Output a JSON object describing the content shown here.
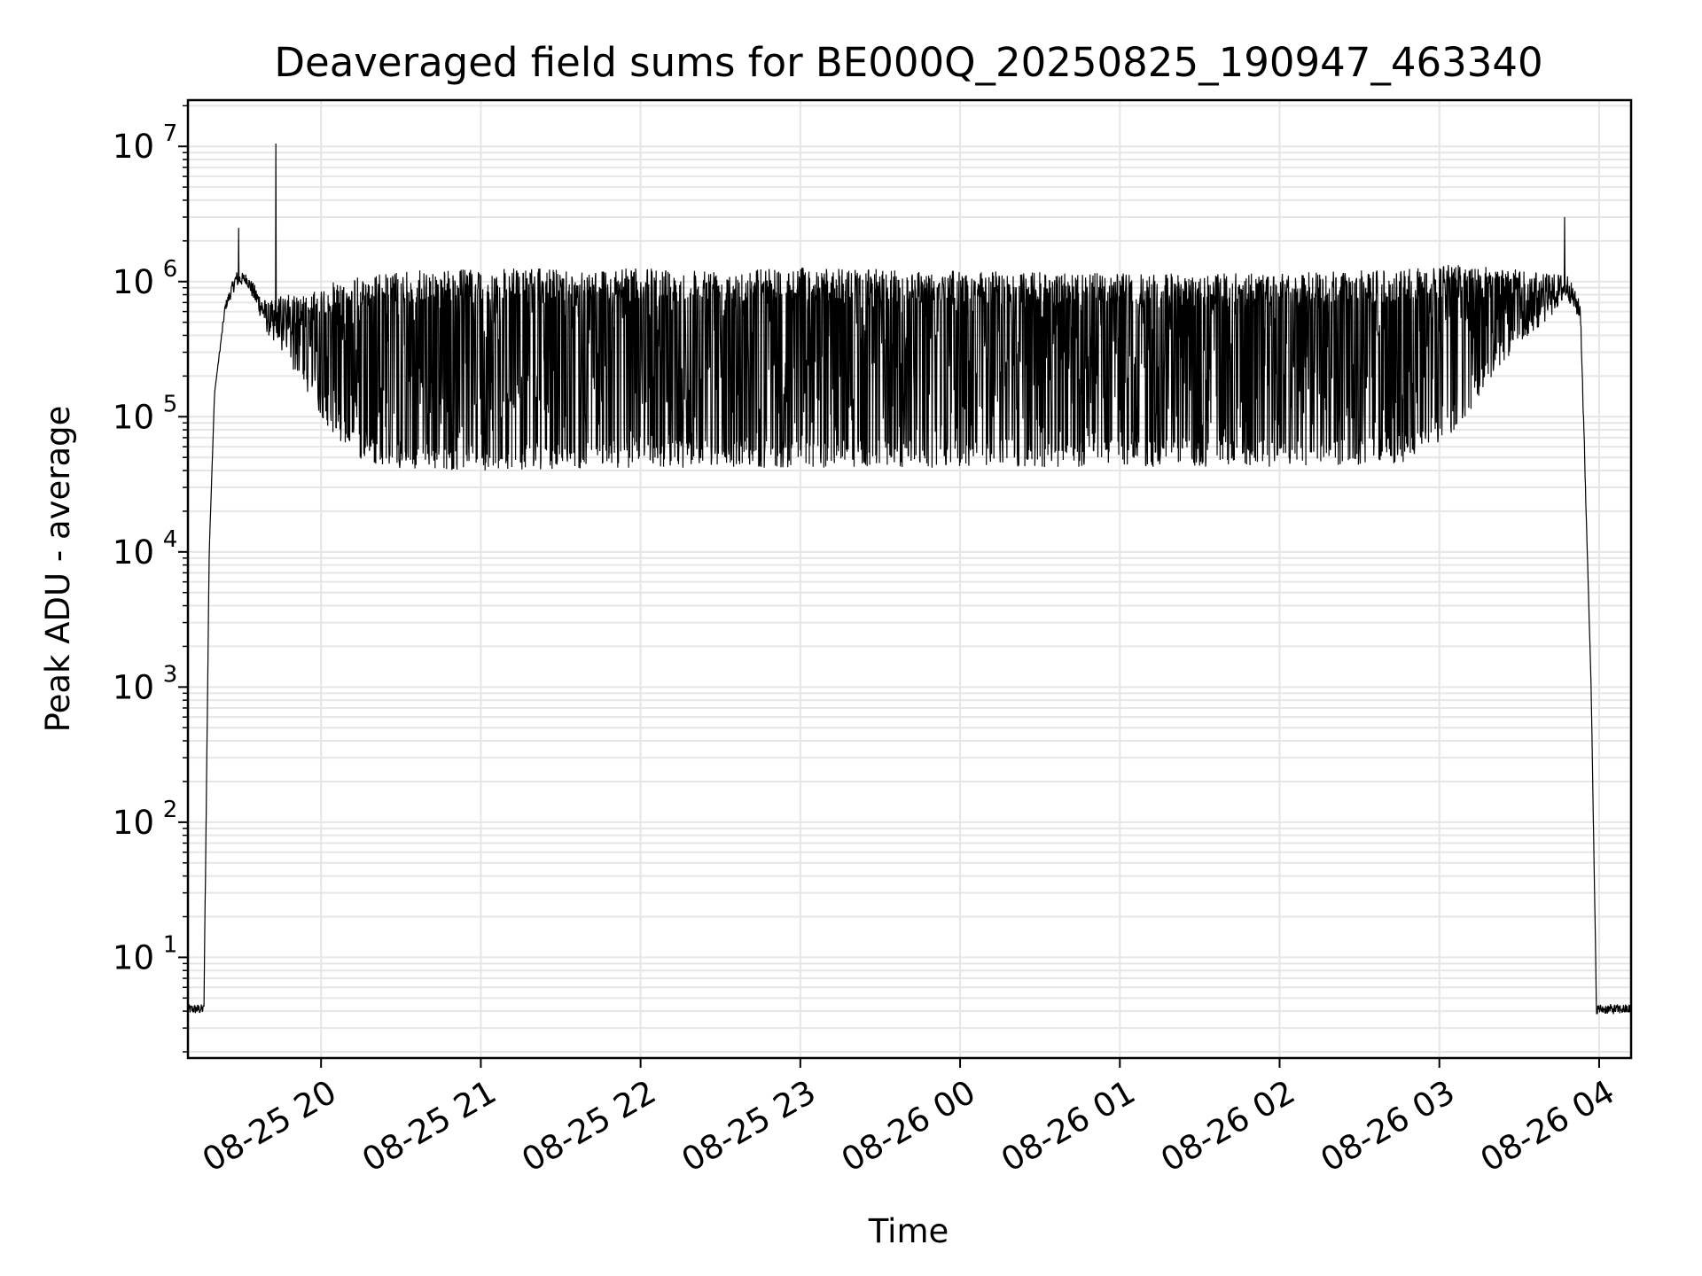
{
  "chart_data": {
    "type": "line",
    "title": "Deaveraged field sums for BE000Q_20250825_190947_463340",
    "xlabel": "Time",
    "ylabel": "Peak ADU - average",
    "y_scale": "log",
    "x_range": [
      "2025-08-25 19:10",
      "2025-08-26 04:12"
    ],
    "y_range": [
      1.8,
      22000000
    ],
    "grid": true,
    "line_color": "#000000",
    "grid_color": "#e6e6e6",
    "x_ticks": [
      {
        "time": "2025-08-25 20:00",
        "label": "08-25 20"
      },
      {
        "time": "2025-08-25 21:00",
        "label": "08-25 21"
      },
      {
        "time": "2025-08-25 22:00",
        "label": "08-25 22"
      },
      {
        "time": "2025-08-25 23:00",
        "label": "08-25 23"
      },
      {
        "time": "2025-08-26 00:00",
        "label": "08-26 00"
      },
      {
        "time": "2025-08-26 01:00",
        "label": "08-26 01"
      },
      {
        "time": "2025-08-26 02:00",
        "label": "08-26 02"
      },
      {
        "time": "2025-08-26 03:00",
        "label": "08-26 03"
      },
      {
        "time": "2025-08-26 04:00",
        "label": "08-26 04"
      }
    ],
    "y_ticks": [
      {
        "value": 10,
        "base": "10",
        "exp": "1"
      },
      {
        "value": 100,
        "base": "10",
        "exp": "2"
      },
      {
        "value": 1000,
        "base": "10",
        "exp": "3"
      },
      {
        "value": 10000,
        "base": "10",
        "exp": "4"
      },
      {
        "value": 100000,
        "base": "10",
        "exp": "5"
      },
      {
        "value": 1000000,
        "base": "10",
        "exp": "6"
      },
      {
        "value": 10000000,
        "base": "10",
        "exp": "7"
      }
    ],
    "envelope": {
      "points": [
        {
          "time": "2025-08-25 19:10",
          "low": 3.8,
          "high": 4.5
        },
        {
          "time": "2025-08-25 19:16",
          "low": 3.8,
          "high": 4.5
        },
        {
          "time": "2025-08-25 19:18",
          "low": 10000,
          "high": 10000
        },
        {
          "time": "2025-08-25 19:20",
          "low": 150000,
          "high": 150000
        },
        {
          "time": "2025-08-25 19:24",
          "low": 600000,
          "high": 700000
        },
        {
          "time": "2025-08-25 19:28",
          "low": 900000,
          "high": 1200000
        },
        {
          "time": "2025-08-25 19:32",
          "low": 950000,
          "high": 1150000
        },
        {
          "time": "2025-08-25 19:40",
          "low": 400000,
          "high": 700000
        },
        {
          "time": "2025-08-25 19:45",
          "low": 300000,
          "high": 800000
        },
        {
          "time": "2025-08-25 19:55",
          "low": 150000,
          "high": 800000
        },
        {
          "time": "2025-08-25 20:05",
          "low": 70000,
          "high": 1000000
        },
        {
          "time": "2025-08-25 20:15",
          "low": 48000,
          "high": 1100000
        },
        {
          "time": "2025-08-25 20:30",
          "low": 40000,
          "high": 1200000
        },
        {
          "time": "2025-08-25 21:00",
          "low": 40000,
          "high": 1250000
        },
        {
          "time": "2025-08-25 22:00",
          "low": 42000,
          "high": 1250000
        },
        {
          "time": "2025-08-25 23:00",
          "low": 42000,
          "high": 1280000
        },
        {
          "time": "2025-08-26 00:00",
          "low": 42000,
          "high": 1200000
        },
        {
          "time": "2025-08-26 01:00",
          "low": 42000,
          "high": 1150000
        },
        {
          "time": "2025-08-26 02:00",
          "low": 42000,
          "high": 1150000
        },
        {
          "time": "2025-08-26 02:45",
          "low": 45000,
          "high": 1250000
        },
        {
          "time": "2025-08-26 03:00",
          "low": 60000,
          "high": 1350000
        },
        {
          "time": "2025-08-26 03:10",
          "low": 100000,
          "high": 1350000
        },
        {
          "time": "2025-08-26 03:20",
          "low": 200000,
          "high": 1300000
        },
        {
          "time": "2025-08-26 03:30",
          "low": 350000,
          "high": 1250000
        },
        {
          "time": "2025-08-26 03:40",
          "low": 500000,
          "high": 1150000
        },
        {
          "time": "2025-08-26 03:48",
          "low": 750000,
          "high": 1150000
        },
        {
          "time": "2025-08-26 03:53",
          "low": 500000,
          "high": 700000
        },
        {
          "time": "2025-08-26 03:57",
          "low": 1000,
          "high": 1000
        },
        {
          "time": "2025-08-26 03:59",
          "low": 3.8,
          "high": 4.5
        },
        {
          "time": "2025-08-26 04:12",
          "low": 3.8,
          "high": 4.5
        }
      ]
    },
    "spikes": [
      {
        "time": "2025-08-25 19:29",
        "value": 2500000
      },
      {
        "time": "2025-08-25 19:43",
        "value": 10500000
      },
      {
        "time": "2025-08-26 03:47",
        "value": 3000000
      }
    ]
  }
}
